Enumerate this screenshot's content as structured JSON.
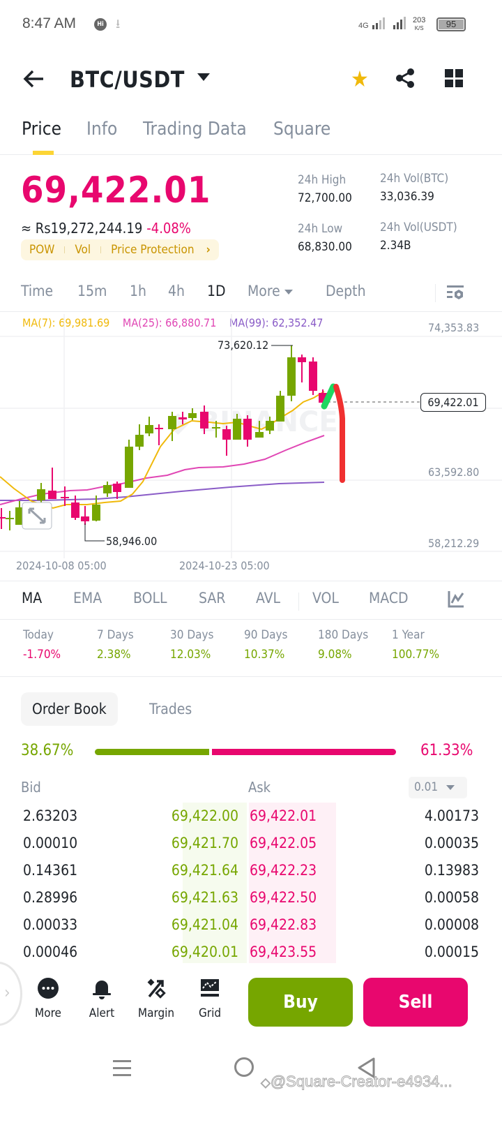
{
  "status_bar": {
    "time": "8:47 AM",
    "network": "4G",
    "speed_value": "203",
    "speed_unit": "K/S",
    "battery": "95"
  },
  "header": {
    "pair": "BTC/USDT"
  },
  "tabs": [
    {
      "label": "Price",
      "active": true
    },
    {
      "label": "Info"
    },
    {
      "label": "Trading Data"
    },
    {
      "label": "Square"
    }
  ],
  "ticker": {
    "last_price": "69,422.01",
    "fiat_value": "≈ Rs19,272,244.19",
    "change_pct": "-4.08%",
    "tags": [
      "POW",
      "Vol",
      "Price Protection"
    ],
    "tags_chevron": "›",
    "high_label": "24h High",
    "high": "72,700.00",
    "low_label": "24h Low",
    "low": "68,830.00",
    "vol_btc_label": "24h Vol(BTC)",
    "vol_btc": "33,036.39",
    "vol_usdt_label": "24h Vol(USDT)",
    "vol_usdt": "2.34B"
  },
  "intervals": [
    {
      "label": "Time"
    },
    {
      "label": "15m"
    },
    {
      "label": "1h"
    },
    {
      "label": "4h"
    },
    {
      "label": "1D",
      "active": true
    },
    {
      "label": "More"
    },
    {
      "label": "Depth"
    }
  ],
  "ma_legend": {
    "ma7": "MA(7): 69,981.69",
    "ma7_color": "#f0b90b",
    "ma25": "MA(25): 66,880.71",
    "ma25_color": "#e046b4",
    "ma99": "MA(99): 62,352.47",
    "ma99_color": "#8a5cc7"
  },
  "chart_data": {
    "type": "candlestick",
    "pair": "BTC/USDT",
    "interval": "1D",
    "y_axis_labels": [
      "74,353.83",
      "69,422.01",
      "63,592.80",
      "58,212.29"
    ],
    "x_axis_labels": [
      "2024-10-08 05:00",
      "2024-10-23 05:00"
    ],
    "annotations": {
      "high_marker": "73,620.12",
      "low_marker": "58,946.00",
      "current_price": "69,422.01"
    },
    "up_color": "#76a600",
    "down_color": "#e8076e",
    "moving_averages": [
      {
        "name": "MA(7)",
        "value": 69981.69
      },
      {
        "name": "MA(25)",
        "value": 66880.71
      },
      {
        "name": "MA(99)",
        "value": 62352.47
      }
    ],
    "drawn_overlay": "hand-drawn green up-stroke followed by red down-stroke"
  },
  "indicators": [
    {
      "label": "MA",
      "active": true
    },
    {
      "label": "EMA"
    },
    {
      "label": "BOLL"
    },
    {
      "label": "SAR"
    },
    {
      "label": "AVL"
    },
    {
      "label": "VOL"
    },
    {
      "label": "MACD"
    }
  ],
  "performance": [
    {
      "label": "Today",
      "value": "-1.70%",
      "dir": "down"
    },
    {
      "label": "7 Days",
      "value": "2.38%",
      "dir": "up"
    },
    {
      "label": "30 Days",
      "value": "12.03%",
      "dir": "up"
    },
    {
      "label": "90 Days",
      "value": "10.37%",
      "dir": "up"
    },
    {
      "label": "180 Days",
      "value": "9.08%",
      "dir": "up"
    },
    {
      "label": "1 Year",
      "value": "100.77%",
      "dir": "up"
    }
  ],
  "order_book": {
    "tabs": [
      "Order Book",
      "Trades"
    ],
    "bid_pct": "38.67%",
    "ask_pct": "61.33%",
    "bid_label": "Bid",
    "ask_label": "Ask",
    "precision": "0.01",
    "rows": [
      {
        "bid_qty": "2.63203",
        "bid_price": "69,422.00",
        "ask_price": "69,422.01",
        "ask_qty": "4.00173"
      },
      {
        "bid_qty": "0.00010",
        "bid_price": "69,421.70",
        "ask_price": "69,422.05",
        "ask_qty": "0.00035"
      },
      {
        "bid_qty": "0.14361",
        "bid_price": "69,421.64",
        "ask_price": "69,422.23",
        "ask_qty": "0.13983"
      },
      {
        "bid_qty": "0.28996",
        "bid_price": "69,421.63",
        "ask_price": "69,422.50",
        "ask_qty": "0.00058"
      },
      {
        "bid_qty": "0.00033",
        "bid_price": "69,421.04",
        "ask_price": "69,422.83",
        "ask_qty": "0.00008"
      },
      {
        "bid_qty": "0.00046",
        "bid_price": "69,420.01",
        "ask_price": "69,423.55",
        "ask_qty": "0.00015"
      }
    ]
  },
  "bottom_bar": {
    "actions": [
      {
        "label": "More",
        "icon": "more-icon"
      },
      {
        "label": "Alert",
        "icon": "bell-icon"
      },
      {
        "label": "Margin",
        "icon": "percent-icon"
      },
      {
        "label": "Grid",
        "icon": "grid-chart-icon"
      }
    ],
    "buy": "Buy",
    "sell": "Sell"
  },
  "watermark": "@Square-Creator-e4934..."
}
